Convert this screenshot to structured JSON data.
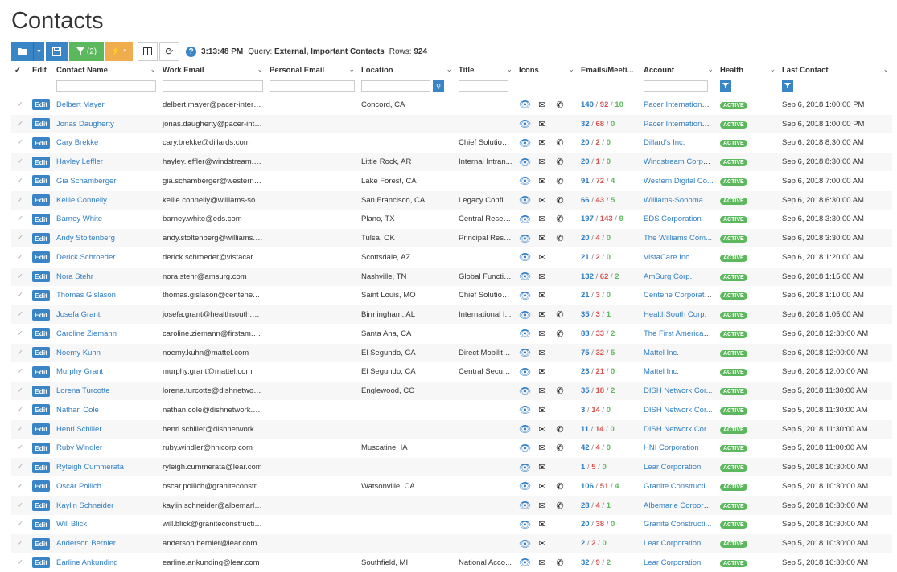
{
  "page_title": "Contacts",
  "toolbar": {
    "filter_count": "(2)",
    "time": "3:13:48 PM",
    "query_label": "Query:",
    "query_value": "External, Important Contacts",
    "rows_label": "Rows:",
    "rows_value": "924",
    "help_glyph": "?"
  },
  "columns": {
    "edit": "Edit",
    "contact_name": "Contact Name",
    "work_email": "Work Email",
    "personal_email": "Personal Email",
    "location": "Location",
    "title": "Title",
    "icons": "Icons",
    "emails": "Emails/Meeti...",
    "account": "Account",
    "health": "Health",
    "last_contact": "Last Contact"
  },
  "edit_label": "Edit",
  "active_label": "ACTIVE",
  "rows": [
    {
      "name": "Delbert Mayer",
      "email": "delbert.mayer@pacer-intern...",
      "location": "Concord, CA",
      "title": "",
      "phone": true,
      "e1": "140",
      "e2": "92",
      "e3": "10",
      "account": "Pacer International...",
      "last": "Sep 6, 2018 1:00:00 PM"
    },
    {
      "name": "Jonas Daugherty",
      "email": "jonas.daugherty@pacer-inte...",
      "location": "",
      "title": "",
      "phone": false,
      "e1": "32",
      "e2": "68",
      "e3": "0",
      "account": "Pacer International...",
      "last": "Sep 6, 2018 1:00:00 PM"
    },
    {
      "name": "Cary Brekke",
      "email": "cary.brekke@dillards.com",
      "location": "",
      "title": "Chief Solution...",
      "phone": true,
      "e1": "20",
      "e2": "2",
      "e3": "0",
      "account": "Dillard's Inc.",
      "last": "Sep 6, 2018 8:30:00 AM"
    },
    {
      "name": "Hayley Leffler",
      "email": "hayley.leffler@windstream.c...",
      "location": "Little Rock, AR",
      "title": "Internal Intran...",
      "phone": true,
      "e1": "20",
      "e2": "1",
      "e3": "0",
      "account": "Windstream Corpo...",
      "last": "Sep 6, 2018 8:30:00 AM"
    },
    {
      "name": "Gia Schamberger",
      "email": "gia.schamberger@westerndi...",
      "location": "Lake Forest, CA",
      "title": "",
      "phone": true,
      "e1": "91",
      "e2": "72",
      "e3": "4",
      "account": "Western Digital Co...",
      "last": "Sep 6, 2018 7:00:00 AM"
    },
    {
      "name": "Kellie Connelly",
      "email": "kellie.connelly@williams-son...",
      "location": "San Francisco, CA",
      "title": "Legacy Config...",
      "phone": true,
      "e1": "66",
      "e2": "43",
      "e3": "5",
      "account": "Williams-Sonoma ,...",
      "last": "Sep 6, 2018 6:30:00 AM"
    },
    {
      "name": "Barney White",
      "email": "barney.white@eds.com",
      "location": "Plano, TX",
      "title": "Central Resea...",
      "phone": true,
      "e1": "197",
      "e2": "143",
      "e3": "9",
      "account": "EDS Corporation",
      "last": "Sep 6, 2018 3:30:00 AM"
    },
    {
      "name": "Andy Stoltenberg",
      "email": "andy.stoltenberg@williams.c...",
      "location": "Tulsa, OK",
      "title": "Principal Rese...",
      "phone": true,
      "e1": "20",
      "e2": "4",
      "e3": "0",
      "account": "The Williams Com...",
      "last": "Sep 6, 2018 3:30:00 AM"
    },
    {
      "name": "Derick Schroeder",
      "email": "derick.schroeder@vistacare....",
      "location": "Scottsdale, AZ",
      "title": "",
      "phone": false,
      "e1": "21",
      "e2": "2",
      "e3": "0",
      "account": "VistaCare Inc",
      "last": "Sep 6, 2018 1:20:00 AM"
    },
    {
      "name": "Nora Stehr",
      "email": "nora.stehr@amsurg.com",
      "location": "Nashville, TN",
      "title": "Global Functio...",
      "phone": false,
      "e1": "132",
      "e2": "62",
      "e3": "2",
      "account": "AmSurg Corp.",
      "last": "Sep 6, 2018 1:15:00 AM"
    },
    {
      "name": "Thomas Gislason",
      "email": "thomas.gislason@centene.c...",
      "location": "Saint Louis, MO",
      "title": "Chief Solution...",
      "phone": false,
      "e1": "21",
      "e2": "3",
      "e3": "0",
      "account": "Centene Corporation",
      "last": "Sep 6, 2018 1:10:00 AM"
    },
    {
      "name": "Josefa Grant",
      "email": "josefa.grant@healthsouth.com",
      "location": "Birmingham, AL",
      "title": "International I...",
      "phone": true,
      "e1": "35",
      "e2": "3",
      "e3": "1",
      "account": "HealthSouth Corp.",
      "last": "Sep 6, 2018 1:05:00 AM"
    },
    {
      "name": "Caroline Ziemann",
      "email": "caroline.ziemann@firstam.com",
      "location": "Santa Ana, CA",
      "title": "",
      "phone": true,
      "e1": "88",
      "e2": "33",
      "e3": "2",
      "account": "The First American...",
      "last": "Sep 6, 2018 12:30:00 AM"
    },
    {
      "name": "Noemy Kuhn",
      "email": "noemy.kuhn@mattel.com",
      "location": "El Segundo, CA",
      "title": "Direct Mobility ...",
      "phone": false,
      "e1": "75",
      "e2": "32",
      "e3": "5",
      "account": "Mattel Inc.",
      "last": "Sep 6, 2018 12:00:00 AM"
    },
    {
      "name": "Murphy Grant",
      "email": "murphy.grant@mattel.com",
      "location": "El Segundo, CA",
      "title": "Central Securi...",
      "phone": false,
      "e1": "23",
      "e2": "21",
      "e3": "0",
      "account": "Mattel Inc.",
      "last": "Sep 6, 2018 12:00:00 AM"
    },
    {
      "name": "Lorena Turcotte",
      "email": "lorena.turcotte@dishnetwork...",
      "location": "Englewood, CO",
      "title": "",
      "phone": true,
      "e1": "35",
      "e2": "18",
      "e3": "2",
      "account": "DISH Network Cor...",
      "last": "Sep 5, 2018 11:30:00 AM"
    },
    {
      "name": "Nathan Cole",
      "email": "nathan.cole@dishnetwork.com",
      "location": "",
      "title": "",
      "phone": false,
      "e1": "3",
      "e2": "14",
      "e3": "0",
      "account": "DISH Network Cor...",
      "last": "Sep 5, 2018 11:30:00 AM"
    },
    {
      "name": "Henri Schiller",
      "email": "henri.schiller@dishnetwork.c...",
      "location": "",
      "title": "",
      "phone": true,
      "e1": "11",
      "e2": "14",
      "e3": "0",
      "account": "DISH Network Cor...",
      "last": "Sep 5, 2018 11:30:00 AM"
    },
    {
      "name": "Ruby Windler",
      "email": "ruby.windler@hnicorp.com",
      "location": "Muscatine, IA",
      "title": "",
      "phone": true,
      "e1": "42",
      "e2": "4",
      "e3": "0",
      "account": "HNI Corporation",
      "last": "Sep 5, 2018 11:00:00 AM"
    },
    {
      "name": "Ryleigh Cummerata",
      "email": "ryleigh.cummerata@lear.com",
      "location": "",
      "title": "",
      "phone": false,
      "e1": "1",
      "e2": "5",
      "e3": "0",
      "account": "Lear Corporation",
      "last": "Sep 5, 2018 10:30:00 AM"
    },
    {
      "name": "Oscar Pollich",
      "email": "oscar.pollich@graniteconstr...",
      "location": "Watsonville, CA",
      "title": "",
      "phone": true,
      "e1": "106",
      "e2": "51",
      "e3": "4",
      "account": "Granite Constructi...",
      "last": "Sep 5, 2018 10:30:00 AM"
    },
    {
      "name": "Kaylin Schneider",
      "email": "kaylin.schneider@albemarle....",
      "location": "",
      "title": "",
      "phone": true,
      "e1": "28",
      "e2": "4",
      "e3": "1",
      "account": "Albemarle Corpora...",
      "last": "Sep 5, 2018 10:30:00 AM"
    },
    {
      "name": "Will Blick",
      "email": "will.blick@graniteconstructio...",
      "location": "",
      "title": "",
      "phone": false,
      "e1": "20",
      "e2": "38",
      "e3": "0",
      "account": "Granite Constructi...",
      "last": "Sep 5, 2018 10:30:00 AM"
    },
    {
      "name": "Anderson Bernier",
      "email": "anderson.bernier@lear.com",
      "location": "",
      "title": "",
      "phone": false,
      "e1": "2",
      "e2": "2",
      "e3": "0",
      "account": "Lear Corporation",
      "last": "Sep 5, 2018 10:30:00 AM"
    },
    {
      "name": "Earline Ankunding",
      "email": "earline.ankunding@lear.com",
      "location": "Southfield, MI",
      "title": "National Acco...",
      "phone": true,
      "e1": "32",
      "e2": "9",
      "e3": "2",
      "account": "Lear Corporation",
      "last": "Sep 5, 2018 10:30:00 AM"
    }
  ]
}
